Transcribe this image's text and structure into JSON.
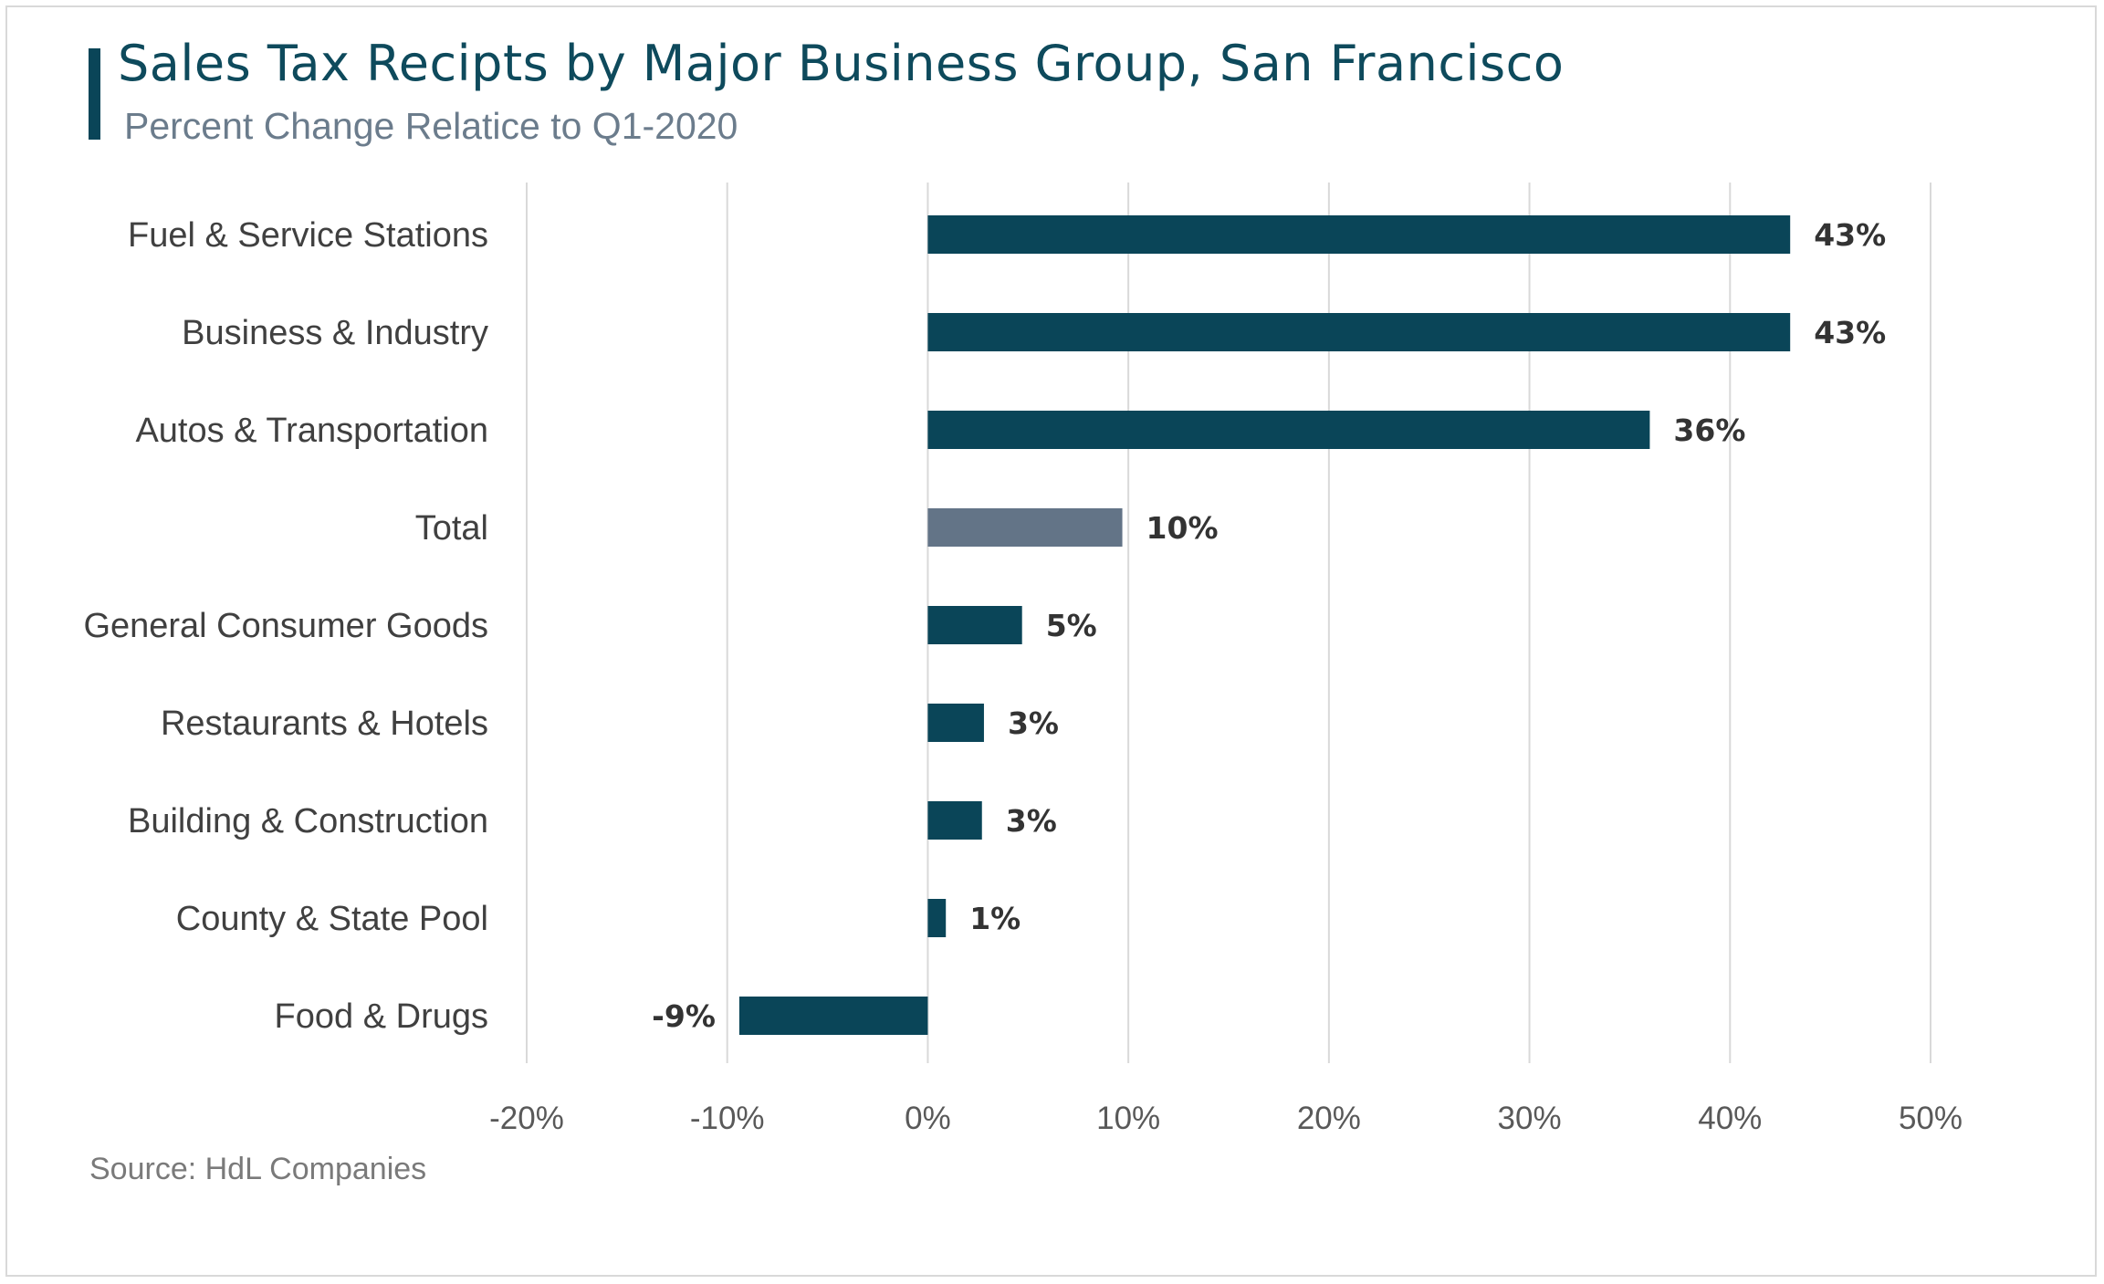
{
  "chart_data": {
    "type": "bar",
    "orientation": "horizontal",
    "title": "Sales Tax Recipts by Major Business Group, San Francisco",
    "subtitle": "Percent Change Relatice to Q1-2020",
    "xlabel": "",
    "ylabel": "",
    "categories": [
      "Fuel & Service Stations",
      "Business & Industry",
      "Autos & Transportation",
      "Total",
      "General Consumer Goods",
      "Restaurants & Hotels",
      "Building & Construction",
      "County & State Pool",
      "Food & Drugs"
    ],
    "values": [
      43,
      43,
      36,
      9.7,
      4.7,
      2.8,
      2.7,
      0.9,
      -9.4
    ],
    "data_labels": [
      "43%",
      "43%",
      "36%",
      "10%",
      "5%",
      "3%",
      "3%",
      "1%",
      "-9%"
    ],
    "highlight_category": "Total",
    "xlim": [
      -20,
      50
    ],
    "xticks": [
      -20,
      -10,
      0,
      10,
      20,
      30,
      40,
      50
    ],
    "xtick_labels": [
      "-20%",
      "-10%",
      "0%",
      "10%",
      "20%",
      "30%",
      "40%",
      "50%"
    ],
    "grid": "vertical",
    "legend": "none",
    "colors": {
      "bar": "#0a4558",
      "highlight": "#637487",
      "grid": "#d9d9d9"
    }
  },
  "footer": {
    "source": "Source: HdL Companies"
  }
}
